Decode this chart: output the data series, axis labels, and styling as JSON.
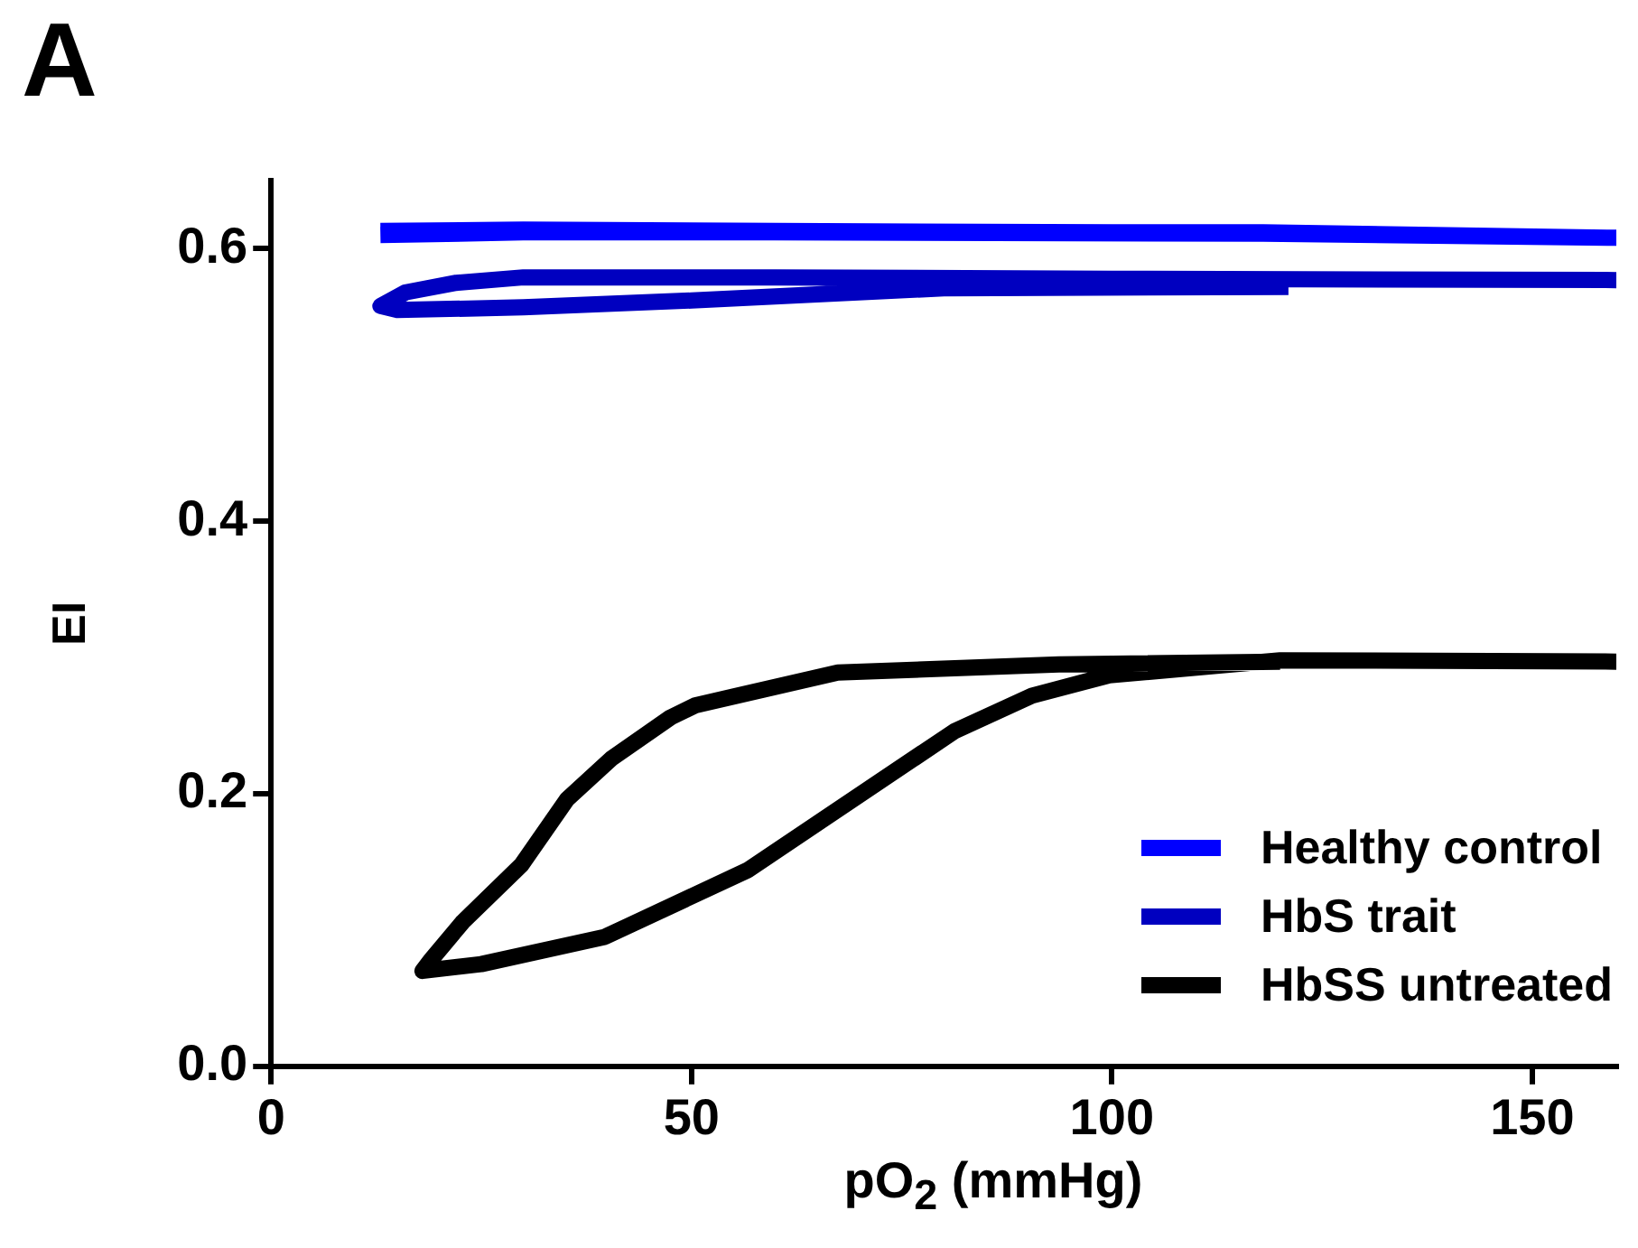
{
  "chart_data": {
    "type": "line",
    "title": "A",
    "xlabel": "pO$_{2}$ (mmHg)",
    "ylabel": "EI",
    "xlim": [
      0,
      160
    ],
    "xticks": [
      0,
      50,
      100,
      150
    ],
    "ylim": [
      0,
      0.65
    ],
    "yticks": [
      {
        "value": 0,
        "label": "0.0"
      },
      0.2,
      0.4,
      0.6
    ],
    "grid": false,
    "legend": "bottom right",
    "marker": "none",
    "line_style": "solid",
    "series": [
      {
        "name": "Healthy control",
        "color": "#0000ff",
        "x": [
          13,
          30,
          60,
          100,
          118,
          160,
          118,
          60,
          30,
          13
        ],
        "values": [
          0.613,
          0.614,
          0.613,
          0.612,
          0.612,
          0.608,
          0.611,
          0.612,
          0.612,
          0.61
        ]
      },
      {
        "name": "HbS trait",
        "color": "#0000c0",
        "x": [
          121,
          80,
          50,
          30,
          15,
          13,
          16,
          22,
          30,
          60,
          100,
          160
        ],
        "values": [
          0.572,
          0.571,
          0.562,
          0.557,
          0.555,
          0.558,
          0.568,
          0.575,
          0.579,
          0.579,
          0.578,
          0.577
        ]
      },
      {
        "name": "HbSS untreated",
        "color": "#000000",
        "x": [
          160,
          120,
          99.7,
          90.5,
          81.3,
          56.7,
          39.7,
          25,
          18,
          19,
          22.8,
          29.8,
          35.2,
          40.5,
          47.5,
          50.5,
          67.4,
          93.7,
          120
        ],
        "values": [
          0.297,
          0.298,
          0.287,
          0.272,
          0.246,
          0.144,
          0.095,
          0.075,
          0.07,
          0.078,
          0.106,
          0.148,
          0.196,
          0.226,
          0.256,
          0.265,
          0.289,
          0.295,
          0.297
        ]
      }
    ]
  }
}
